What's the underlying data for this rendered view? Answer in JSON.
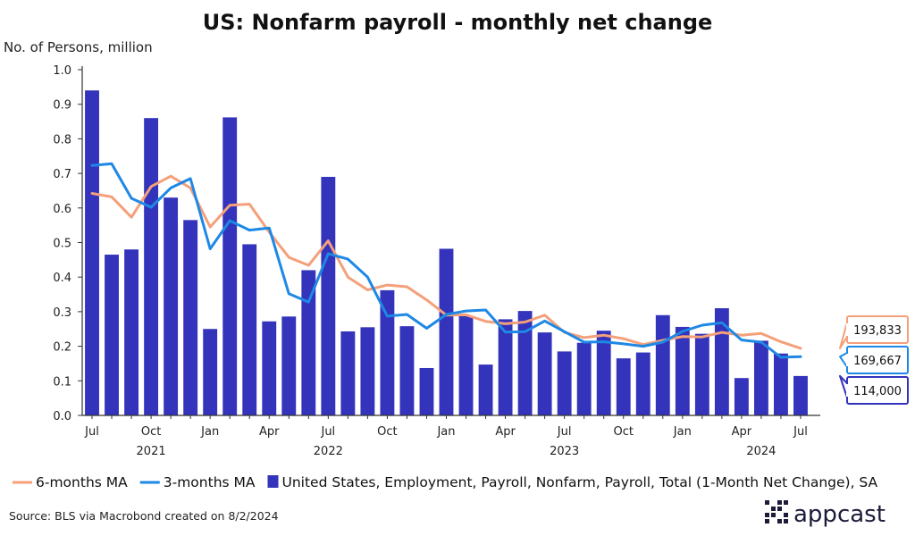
{
  "chart_data": {
    "type": "bar+line",
    "title": "US: Nonfarm payroll - monthly net change",
    "ylabel": "No. of Persons, million",
    "ylim": [
      0,
      1.0
    ],
    "yticks": [
      "0.0",
      "0.1",
      "0.2",
      "0.3",
      "0.4",
      "0.5",
      "0.6",
      "0.7",
      "0.8",
      "0.9",
      "1.0"
    ],
    "month_ticks": [
      {
        "index": 0,
        "label": "Jul"
      },
      {
        "index": 3,
        "label": "Oct"
      },
      {
        "index": 6,
        "label": "Jan"
      },
      {
        "index": 9,
        "label": "Apr"
      },
      {
        "index": 12,
        "label": "Jul"
      },
      {
        "index": 15,
        "label": "Oct"
      },
      {
        "index": 18,
        "label": "Jan"
      },
      {
        "index": 21,
        "label": "Apr"
      },
      {
        "index": 24,
        "label": "Jul"
      },
      {
        "index": 27,
        "label": "Oct"
      },
      {
        "index": 30,
        "label": "Jan"
      },
      {
        "index": 33,
        "label": "Apr"
      },
      {
        "index": 36,
        "label": "Jul"
      }
    ],
    "year_labels": [
      {
        "index": 3,
        "label": "2021"
      },
      {
        "index": 12,
        "label": "2022"
      },
      {
        "index": 24,
        "label": "2023"
      },
      {
        "index": 34,
        "label": "2024"
      }
    ],
    "series": [
      {
        "name": "United States, Employment, Payroll, Nonfarm, Payroll, Total (1-Month Net Change), SA",
        "type": "bar",
        "color": "#3333bb",
        "values": [
          0.94,
          0.465,
          0.48,
          0.86,
          0.63,
          0.565,
          0.25,
          0.862,
          0.495,
          0.272,
          0.286,
          0.42,
          0.69,
          0.243,
          0.255,
          0.362,
          0.258,
          0.137,
          0.482,
          0.287,
          0.147,
          0.278,
          0.302,
          0.24,
          0.185,
          0.21,
          0.245,
          0.165,
          0.182,
          0.29,
          0.256,
          0.236,
          0.31,
          0.108,
          0.216,
          0.179,
          0.114
        ]
      },
      {
        "name": "3-months MA",
        "type": "line",
        "color": "#1e88e5",
        "values": [
          0.723,
          0.728,
          0.628,
          0.602,
          0.658,
          0.685,
          0.482,
          0.563,
          0.536,
          0.542,
          0.352,
          0.328,
          0.468,
          0.452,
          0.4,
          0.287,
          0.292,
          0.252,
          0.292,
          0.302,
          0.305,
          0.241,
          0.242,
          0.273,
          0.242,
          0.212,
          0.213,
          0.207,
          0.2,
          0.212,
          0.243,
          0.261,
          0.268,
          0.218,
          0.212,
          0.168,
          0.17
        ]
      },
      {
        "name": "6-months MA",
        "type": "line",
        "color": "#f4a07a",
        "values": [
          0.642,
          0.632,
          0.573,
          0.662,
          0.692,
          0.658,
          0.545,
          0.608,
          0.611,
          0.53,
          0.457,
          0.434,
          0.505,
          0.4,
          0.363,
          0.377,
          0.372,
          0.334,
          0.29,
          0.291,
          0.272,
          0.265,
          0.27,
          0.29,
          0.24,
          0.225,
          0.232,
          0.222,
          0.205,
          0.217,
          0.228,
          0.227,
          0.24,
          0.232,
          0.237,
          0.213,
          0.194
        ]
      }
    ],
    "callouts": [
      {
        "series": "6-months MA",
        "label": "193,833",
        "value": 0.194,
        "color": "#f4a07a"
      },
      {
        "series": "3-months MA",
        "label": "169,667",
        "value": 0.17,
        "color": "#1e88e5"
      },
      {
        "series": "bar",
        "label": "114,000",
        "value": 0.114,
        "color": "#3333bb"
      }
    ],
    "legend": [
      {
        "label": "6-months MA",
        "kind": "line",
        "color": "#f4a07a"
      },
      {
        "label": "3-months MA",
        "kind": "line",
        "color": "#1e88e5"
      },
      {
        "label": "United States, Employment, Payroll, Nonfarm, Payroll, Total (1-Month Net Change), SA",
        "kind": "box",
        "color": "#3333bb"
      }
    ]
  },
  "source": "Source: BLS via Macrobond created on 8/2/2024",
  "logo": {
    "text": "appcast",
    "color": "#1b1b3a"
  }
}
